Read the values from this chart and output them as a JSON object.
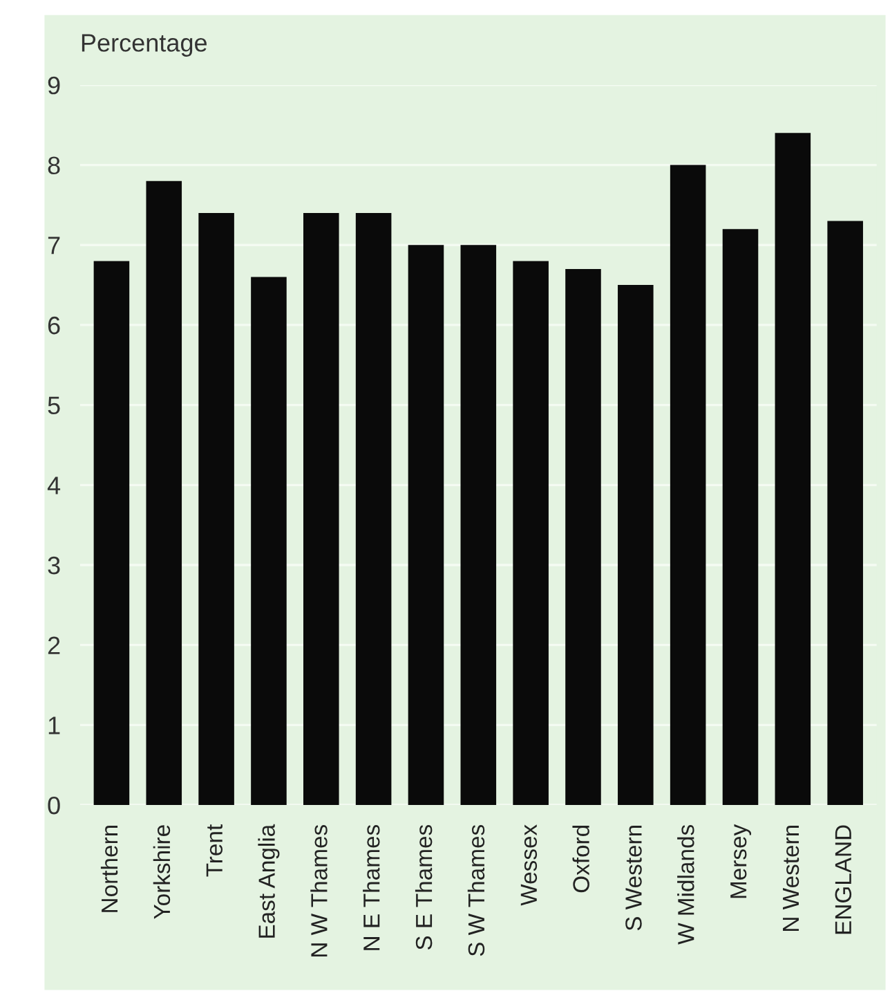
{
  "chart_data": {
    "type": "bar",
    "ylabel": "Percentage",
    "categories": [
      "Northern",
      "Yorkshire",
      "Trent",
      "East Anglia",
      "N W Thames",
      "N E Thames",
      "S E Thames",
      "S W Thames",
      "Wessex",
      "Oxford",
      "S Western",
      "W Midlands",
      "Mersey",
      "N Western",
      "ENGLAND"
    ],
    "values": [
      6.8,
      7.8,
      7.4,
      6.6,
      7.4,
      7.4,
      7.0,
      7.0,
      6.8,
      6.7,
      6.5,
      8.0,
      7.2,
      8.4,
      7.3
    ],
    "color": "#0a0a0a",
    "ylim": [
      0,
      9
    ],
    "yticks": [
      0,
      1,
      2,
      3,
      4,
      5,
      6,
      7,
      8,
      9
    ],
    "grid": "y",
    "legend": false
  }
}
